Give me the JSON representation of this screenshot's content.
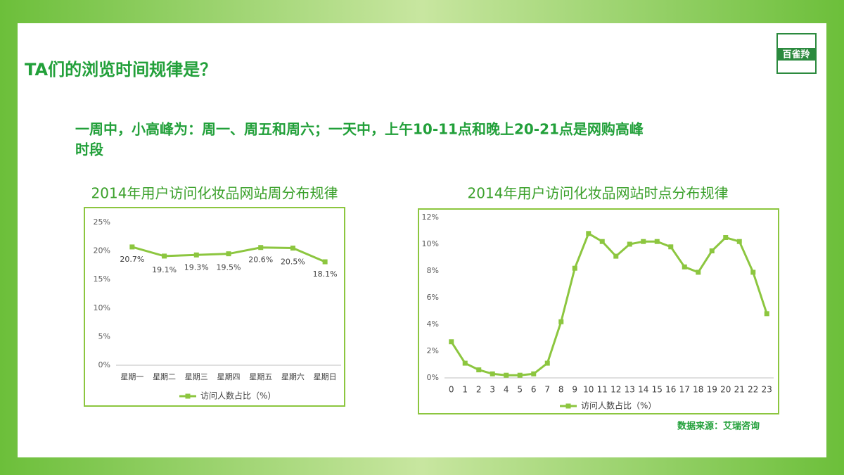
{
  "slide": {
    "title": "TA们的浏览时间规律是？",
    "subtitle_lines": [
      "一周中，小高峰为：周一、周五和周六；一天中，上午10-11点和晚上20-21点是网购高峰",
      "时段"
    ],
    "source": "数据来源：艾瑞咨询",
    "logo": "百雀羚"
  },
  "chart_data": [
    {
      "type": "line",
      "title": "2014年用户访问化妆品网站周分布规律",
      "categories": [
        "星期一",
        "星期二",
        "星期三",
        "星期四",
        "星期五",
        "星期六",
        "星期日"
      ],
      "series": [
        {
          "name": "访问人数占比（%）",
          "color": "#8cc63f",
          "values": [
            20.7,
            19.1,
            19.3,
            19.5,
            20.6,
            20.5,
            18.1
          ],
          "value_labels": [
            "20.7%",
            "19.1%",
            "19.3%",
            "19.5%",
            "20.6%",
            "20.5%",
            "18.1%"
          ]
        }
      ],
      "ylim": [
        0,
        25
      ],
      "yticks": [
        {
          "value": 0,
          "label": "0%"
        },
        {
          "value": 5,
          "label": "5%"
        },
        {
          "value": 10,
          "label": "10%"
        },
        {
          "value": 15,
          "label": "15%"
        },
        {
          "value": 20,
          "label": "20%"
        },
        {
          "value": 25,
          "label": "25%"
        }
      ],
      "grid": false,
      "legend": "bottom"
    },
    {
      "type": "line",
      "title": "2014年用户访问化妆品网站时点分布规律",
      "categories": [
        "0",
        "1",
        "2",
        "3",
        "4",
        "5",
        "6",
        "7",
        "8",
        "9",
        "10",
        "11",
        "12",
        "13",
        "14",
        "15",
        "16",
        "17",
        "18",
        "19",
        "20",
        "21",
        "22",
        "23"
      ],
      "series": [
        {
          "name": "访问人数占比（%）",
          "color": "#8cc63f",
          "values": [
            2.7,
            1.1,
            0.6,
            0.3,
            0.2,
            0.2,
            0.3,
            1.1,
            4.2,
            8.2,
            10.8,
            10.2,
            9.1,
            10.0,
            10.2,
            10.2,
            9.8,
            8.3,
            7.9,
            9.5,
            10.5,
            10.2,
            7.9,
            4.8
          ]
        }
      ],
      "ylim": [
        0,
        12
      ],
      "yticks": [
        {
          "value": 0,
          "label": "0%"
        },
        {
          "value": 2,
          "label": "2%"
        },
        {
          "value": 4,
          "label": "4%"
        },
        {
          "value": 6,
          "label": "6%"
        },
        {
          "value": 8,
          "label": "8%"
        },
        {
          "value": 10,
          "label": "10%"
        },
        {
          "value": 12,
          "label": "12%"
        }
      ],
      "grid": false,
      "legend": "bottom"
    }
  ]
}
